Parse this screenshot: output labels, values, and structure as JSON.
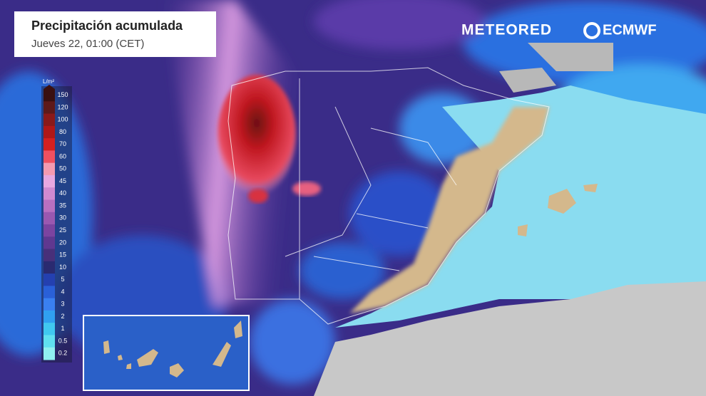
{
  "header": {
    "title": "Precipitación acumulada",
    "subtitle": "Jueves 22, 01:00 (CET)"
  },
  "brands": {
    "left": "METEORED",
    "right": "ECMWF"
  },
  "legend": {
    "unit": "L/m²",
    "levels": [
      150,
      120,
      100,
      80,
      70,
      60,
      50,
      45,
      40,
      35,
      30,
      25,
      20,
      15,
      10,
      5,
      4,
      3,
      2,
      1,
      0.5,
      0.2
    ],
    "colors": [
      "#3a1010",
      "#5e1a1a",
      "#8a1a1a",
      "#b01818",
      "#d42020",
      "#f05060",
      "#f59ab0",
      "#e8a8e0",
      "#d08ad0",
      "#b870c0",
      "#9a58b0",
      "#7c44a0",
      "#603890",
      "#48307a",
      "#2a2a70",
      "#2440b0",
      "#2a60d8",
      "#3a80f0",
      "#30a0f0",
      "#40c8f0",
      "#60e0f0",
      "#90f0f0"
    ]
  }
}
